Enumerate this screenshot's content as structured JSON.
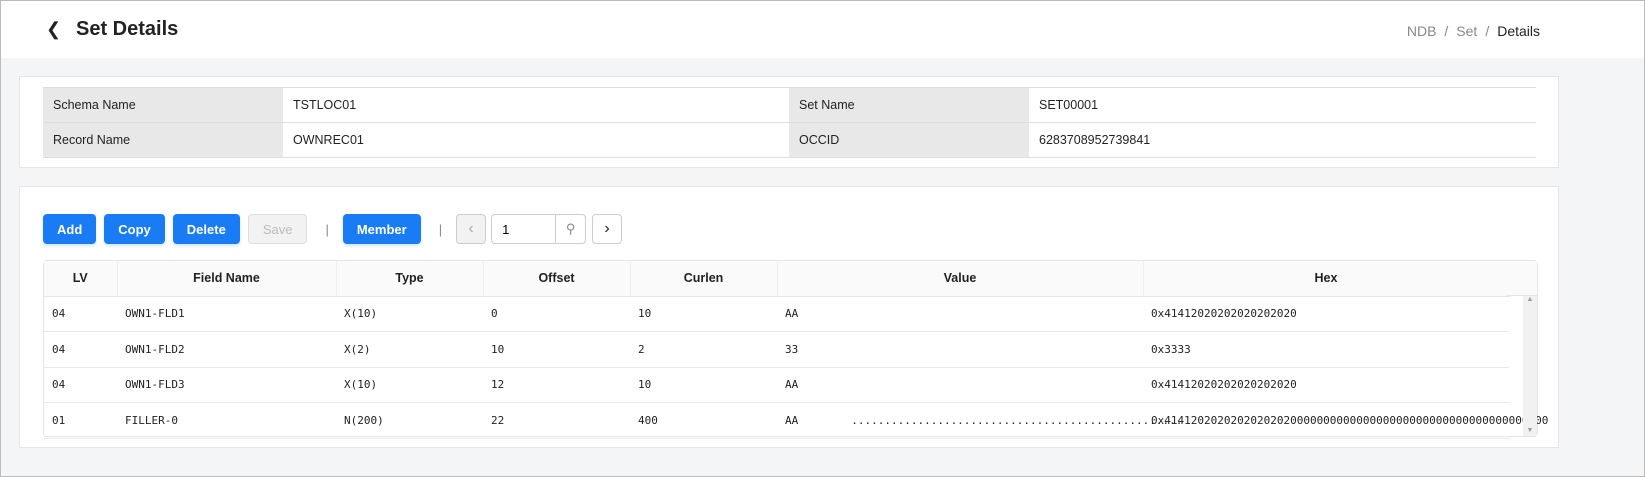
{
  "header": {
    "title": "Set Details",
    "breadcrumb": [
      "NDB",
      "Set",
      "Details"
    ]
  },
  "info": {
    "schema_name_label": "Schema Name",
    "schema_name": "TSTLOC01",
    "set_name_label": "Set Name",
    "set_name": "SET00001",
    "record_name_label": "Record Name",
    "record_name": "OWNREC01",
    "occid_label": "OCCID",
    "occid": "6283708952739841"
  },
  "toolbar": {
    "add": "Add",
    "copy": "Copy",
    "delete": "Delete",
    "save": "Save",
    "member": "Member",
    "separator": "|",
    "page": "1"
  },
  "table": {
    "columns": [
      "LV",
      "Field Name",
      "Type",
      "Offset",
      "Curlen",
      "Value",
      "Hex"
    ],
    "rows": [
      [
        "04",
        "OWN1-FLD1",
        "X(10)",
        "0",
        "10",
        "AA",
        "0x41412020202020202020"
      ],
      [
        "04",
        "OWN1-FLD2",
        "X(2)",
        "10",
        "2",
        "33",
        "0x3333"
      ],
      [
        "04",
        "OWN1-FLD3",
        "X(10)",
        "12",
        "10",
        "AA",
        "0x41412020202020202020"
      ],
      [
        "01",
        "FILLER-0",
        "N(200)",
        "22",
        "400",
        "AA        ..................................................",
        "0x4141202020202020202000000000000000000000000000000000000000"
      ]
    ]
  }
}
